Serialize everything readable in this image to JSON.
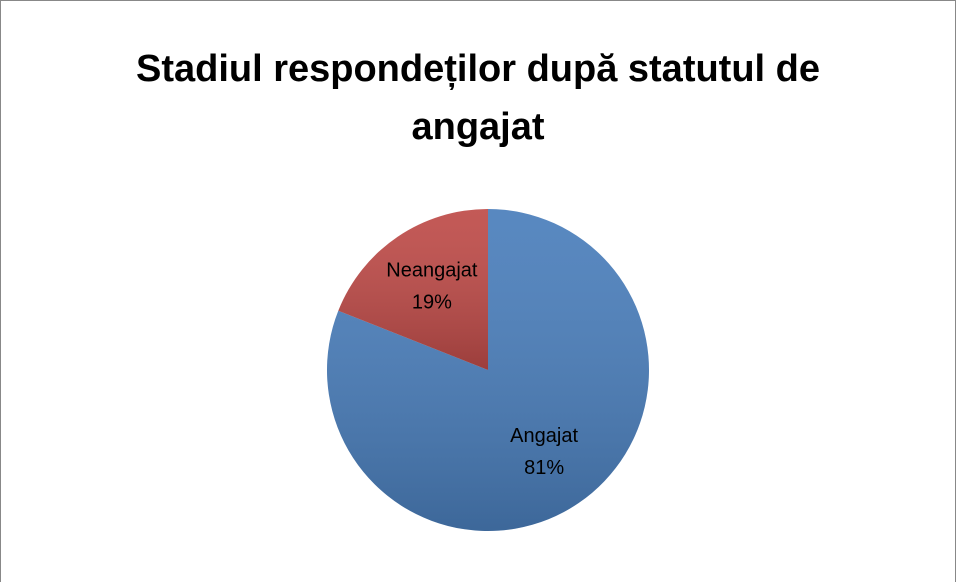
{
  "chart_data": {
    "type": "pie",
    "title": "Stadiul respondeților după statutul de angajat",
    "categories": [
      "Angajat",
      "Neangajat"
    ],
    "values": [
      81,
      19
    ],
    "value_labels": [
      "81%",
      "19%"
    ],
    "colors": [
      "#4a7ebb",
      "#be4b48"
    ]
  }
}
